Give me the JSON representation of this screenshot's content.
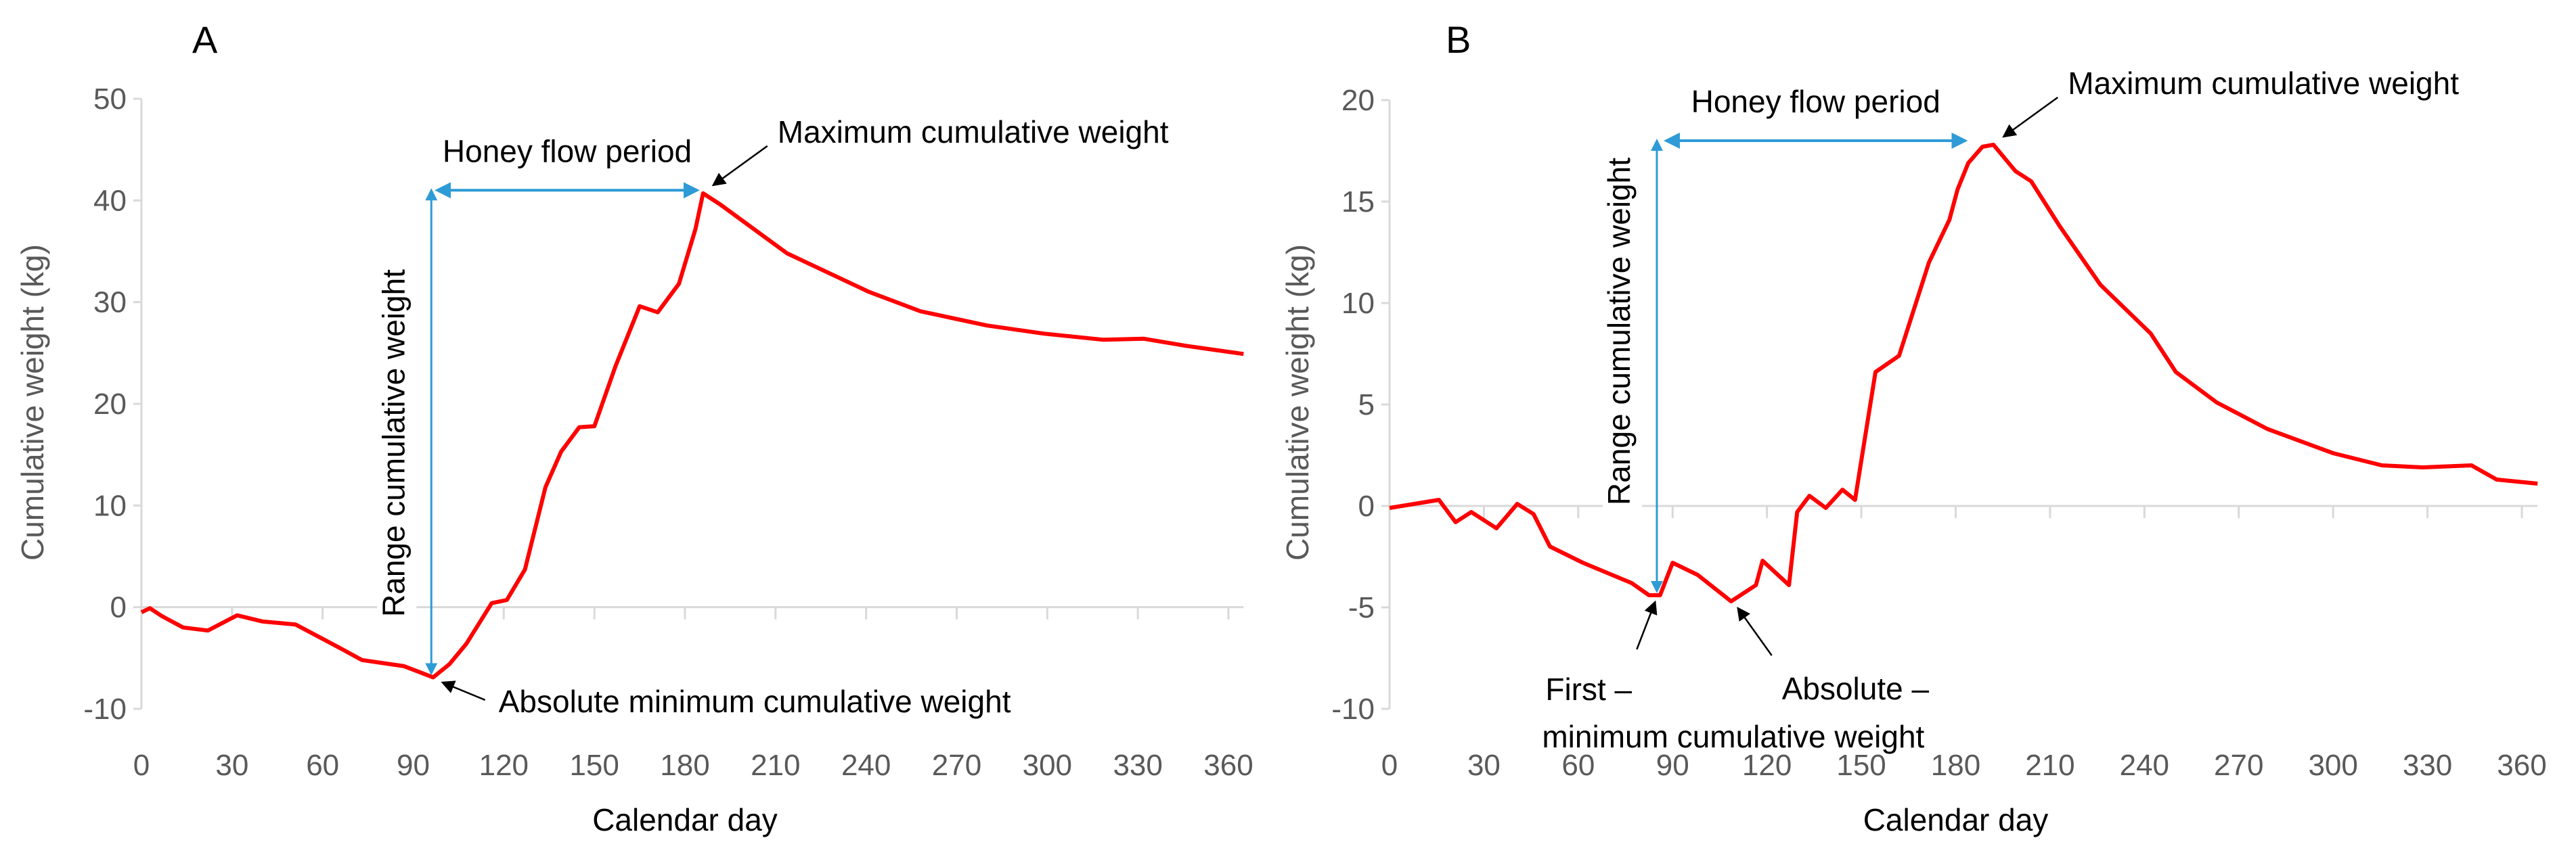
{
  "colors": {
    "series": "#ff0000",
    "annotation_arrow": "#2e9bd6",
    "axis": "#d9d9d9",
    "text": "#595959"
  },
  "chart_data": [
    {
      "type": "line",
      "panel_label": "A",
      "xlabel": "Calendar day",
      "ylabel": "Cumulative weight (kg)",
      "xlim": [
        0,
        365
      ],
      "ylim": [
        -10,
        50
      ],
      "xticks": [
        0,
        30,
        60,
        90,
        120,
        150,
        180,
        210,
        240,
        270,
        300,
        330,
        360
      ],
      "yticks": [
        -10,
        0,
        10,
        20,
        30,
        40,
        50
      ],
      "grid": false,
      "series": [
        {
          "name": "Cumulative weight",
          "x": [
            0,
            2.8,
            6.9,
            13.8,
            22,
            31.7,
            40,
            51,
            65,
            73,
            87,
            96.6,
            102,
            107.6,
            116,
            121,
            127,
            133.8,
            139,
            145,
            150,
            157,
            165,
            171,
            178,
            183.5,
            186,
            191.7,
            213.8,
            241,
            258,
            280,
            299,
            318.6,
            332,
            346,
            365
          ],
          "y": [
            -0.5,
            -0.1,
            -0.9,
            -2,
            -2.3,
            -0.8,
            -1.4,
            -1.7,
            -3.9,
            -5.2,
            -5.8,
            -6.9,
            -5.6,
            -3.6,
            0.4,
            0.7,
            3.7,
            11.8,
            15.3,
            17.7,
            17.8,
            23.7,
            29.6,
            29,
            31.8,
            37.2,
            40.7,
            39.6,
            34.8,
            31,
            29.1,
            27.7,
            26.9,
            26.3,
            26.4,
            25.7,
            24.9
          ]
        }
      ],
      "annotations": {
        "honey_flow": {
          "text": "Honey flow period",
          "x_from": 98,
          "x_to": 184,
          "y": 41
        },
        "range": {
          "text": "Range cumulative weight",
          "x": 96,
          "y_from": 41,
          "y_to": -6.5
        },
        "maximum": {
          "text": "Maximum cumulative weight",
          "x": 186,
          "y": 40.7
        },
        "minimum": {
          "text": "Absolute minimum cumulative weight",
          "x": 97,
          "y": -7
        }
      }
    },
    {
      "type": "line",
      "panel_label": "B",
      "xlabel": "Calendar day",
      "ylabel": "Cumulative weight (kg)",
      "xlim": [
        0,
        365
      ],
      "ylim": [
        -10,
        20
      ],
      "xticks": [
        0,
        30,
        60,
        90,
        120,
        150,
        180,
        210,
        240,
        270,
        300,
        330,
        360
      ],
      "yticks": [
        -10,
        -5,
        0,
        5,
        10,
        15,
        20
      ],
      "grid": false,
      "series": [
        {
          "name": "Cumulative weight",
          "x": [
            0,
            15.7,
            21,
            26,
            34,
            40.6,
            45.8,
            51,
            61.5,
            77,
            82.5,
            86,
            90,
            98,
            108.6,
            116.5,
            118.6,
            127,
            129.6,
            133.5,
            138.7,
            144,
            148,
            154.5,
            162,
            171.5,
            178,
            180.6,
            184,
            188.5,
            192,
            199,
            204,
            213,
            226,
            242,
            250,
            263,
            279,
            300,
            315.5,
            328.5,
            344,
            352,
            365
          ],
          "y": [
            -0.1,
            0.3,
            -0.8,
            -0.3,
            -1.1,
            0.1,
            -0.4,
            -2,
            -2.8,
            -3.8,
            -4.4,
            -4.4,
            -2.8,
            -3.4,
            -4.7,
            -3.9,
            -2.7,
            -3.9,
            -0.3,
            0.5,
            -0.1,
            0.8,
            0.3,
            6.6,
            7.4,
            12,
            14.1,
            15.6,
            16.9,
            17.7,
            17.8,
            16.5,
            16,
            13.8,
            10.9,
            8.5,
            6.6,
            5.1,
            3.8,
            2.6,
            2,
            1.9,
            2,
            1.3,
            1.1
          ]
        }
      ],
      "annotations": {
        "honey_flow": {
          "text": "Honey flow period",
          "x_from": 88,
          "x_to": 183,
          "y": 18
        },
        "range": {
          "text": "Range cumulative weight",
          "x": 85,
          "y_from": 18,
          "y_to": -4.2
        },
        "maximum": {
          "text": "Maximum cumulative weight",
          "x": 192,
          "y": 17.8
        },
        "first_min_label": "First –",
        "absolute_min_label": "Absolute –",
        "min_caption": "minimum cumulative weight",
        "first_min": {
          "x": 84,
          "y": -4.4
        },
        "absolute_min": {
          "x": 108.6,
          "y": -4.7
        }
      }
    }
  ]
}
